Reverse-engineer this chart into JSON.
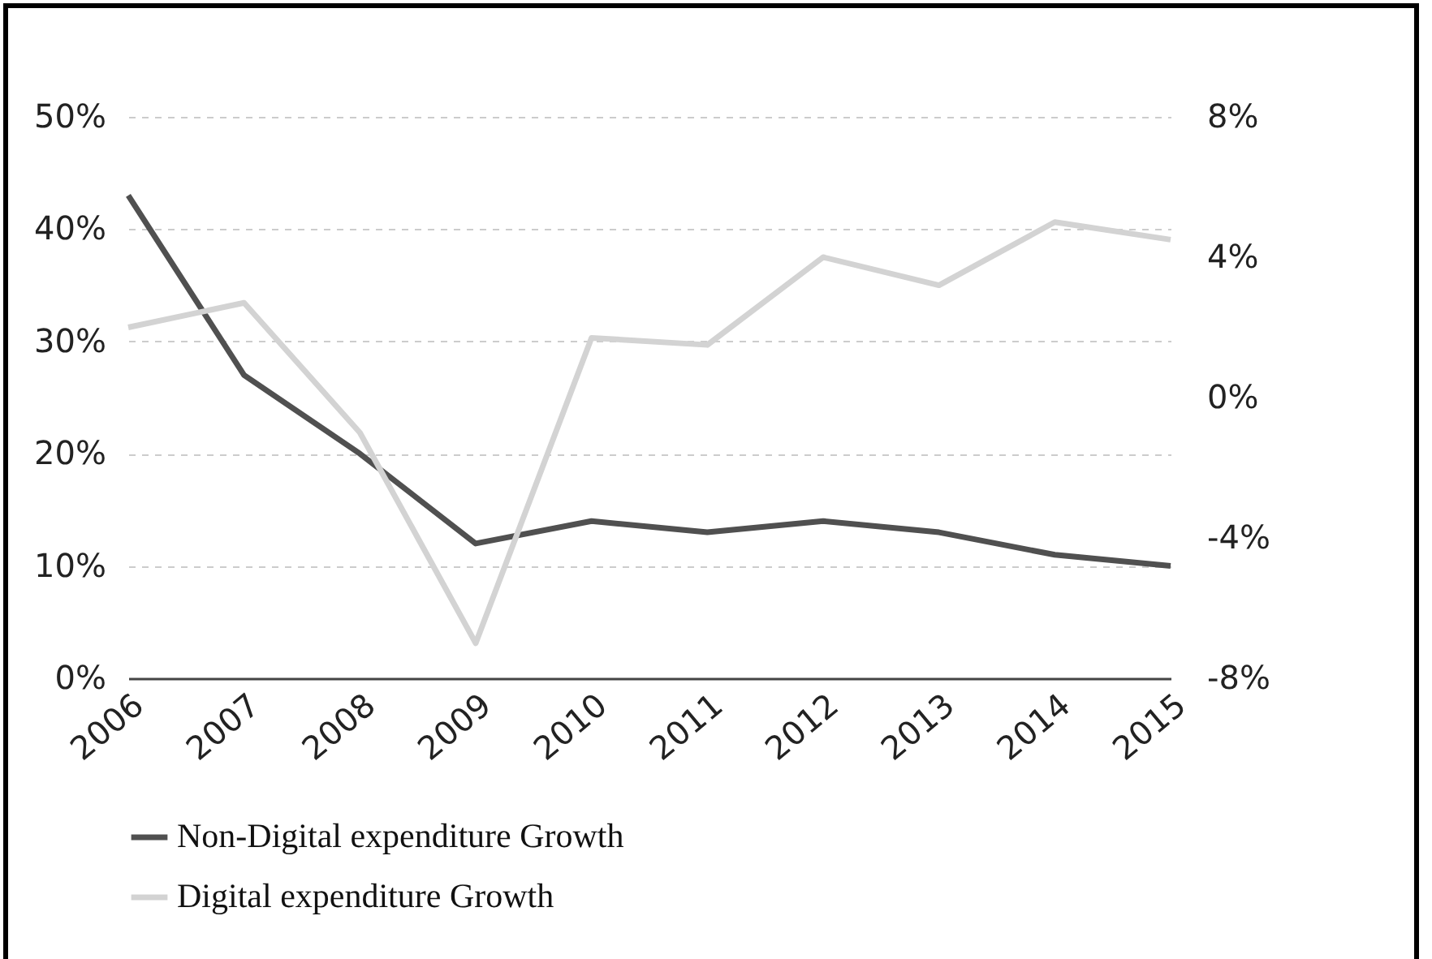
{
  "chart_data": {
    "type": "line",
    "categories": [
      "2006",
      "2007",
      "2008",
      "2009",
      "2010",
      "2011",
      "2012",
      "2013",
      "2014",
      "2015"
    ],
    "series": [
      {
        "name": "Non-Digital expenditure Growth",
        "color": "#505050",
        "values": [
          43,
          27,
          20,
          12,
          14,
          13,
          14,
          13,
          11,
          10
        ]
      },
      {
        "name": "Digital expenditure Growth",
        "color": "#d3d3d3",
        "axis": "y2",
        "values": [
          2.0,
          2.7,
          -1.0,
          -7.0,
          1.7,
          1.5,
          4.0,
          3.2,
          5.0,
          4.5
        ]
      }
    ],
    "ylim": [
      0,
      50
    ],
    "yticks": [
      {
        "value": 0,
        "label": "0%"
      },
      {
        "value": 10,
        "label": "10%"
      },
      {
        "value": 20,
        "label": "20%"
      },
      {
        "value": 30,
        "label": "30%"
      },
      {
        "value": 40,
        "label": "40%"
      },
      {
        "value": 50,
        "label": "50%"
      }
    ],
    "y2lim": [
      -8,
      8
    ],
    "y2ticks": [
      {
        "value": -8,
        "label": "-8%"
      },
      {
        "value": -4,
        "label": "-4%"
      },
      {
        "value": 0,
        "label": "0%"
      },
      {
        "value": 4,
        "label": "4%"
      },
      {
        "value": 8,
        "label": "8%"
      }
    ],
    "grid": "y",
    "legend": "bottom",
    "marker": "none",
    "line_style": "solid"
  }
}
